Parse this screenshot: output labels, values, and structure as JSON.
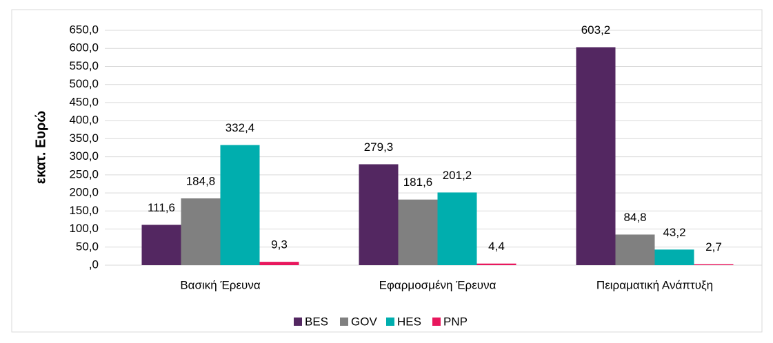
{
  "chart_data": {
    "type": "bar",
    "y_label": "εκατ. Ευρώ",
    "categories": [
      "Βασική Έρευνα",
      "Εφαρμοσμένη Έρευνα",
      "Πειραματική Ανάπτυξη"
    ],
    "series": [
      {
        "name": "BES",
        "color": "#532761",
        "values": [
          111.6,
          279.3,
          603.2
        ],
        "value_labels": [
          "111,6",
          "279,3",
          "603,2"
        ]
      },
      {
        "name": "GOV",
        "color": "#808080",
        "values": [
          184.8,
          181.6,
          84.8
        ],
        "value_labels": [
          "184,8",
          "181,6",
          "84,8"
        ]
      },
      {
        "name": "HES",
        "color": "#00aeae",
        "values": [
          332.4,
          201.2,
          43.2
        ],
        "value_labels": [
          "332,4",
          "201,2",
          "43,2"
        ]
      },
      {
        "name": "PNP",
        "color": "#e8175d",
        "values": [
          9.3,
          4.4,
          2.7
        ],
        "value_labels": [
          "9,3",
          "4,4",
          "2,7"
        ]
      }
    ],
    "ylim": [
      0,
      650
    ],
    "yticks": [
      {
        "value": 0,
        "label": ",0"
      },
      {
        "value": 50,
        "label": "50,0"
      },
      {
        "value": 100,
        "label": "100,0"
      },
      {
        "value": 150,
        "label": "150,0"
      },
      {
        "value": 200,
        "label": "200,0"
      },
      {
        "value": 250,
        "label": "250,0"
      },
      {
        "value": 300,
        "label": "300,0"
      },
      {
        "value": 350,
        "label": "350,0"
      },
      {
        "value": 400,
        "label": "400,0"
      },
      {
        "value": 450,
        "label": "450,0"
      },
      {
        "value": 500,
        "label": "500,0"
      },
      {
        "value": 550,
        "label": "550,0"
      },
      {
        "value": 600,
        "label": "600,0"
      },
      {
        "value": 650,
        "label": "650,0"
      }
    ],
    "grid": true,
    "legend": "bottom"
  }
}
